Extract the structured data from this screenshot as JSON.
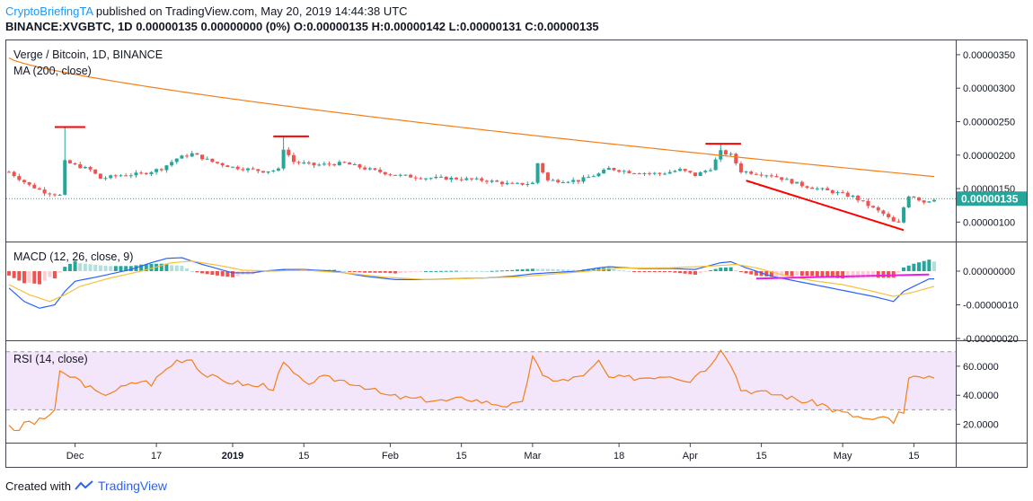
{
  "header": {
    "author": "CryptoBriefingTA",
    "published": "published on TradingView.com, May 20, 2019 14:44:38 UTC",
    "symbol": "BINANCE:XVGBTC, 1D",
    "change": "0.00000135 0.00000000 (0%)",
    "o_label": "O:",
    "o_value": "0.00000135",
    "h_label": "H:",
    "h_value": "0.00000142",
    "l_label": "L:",
    "l_value": "0.00000131",
    "c_label": "C:",
    "c_value": "0.00000135"
  },
  "footer": {
    "created": "Created with",
    "brand": "TradingView"
  },
  "colors": {
    "up": "#26a69a",
    "down": "#ef5350",
    "ma": "#f57f17",
    "macd": "#2962ff",
    "signal": "#f5c13b",
    "rsi": "#f57f17",
    "rsiband": "#f3e5fa",
    "annot": "#ff0000",
    "annot2": "#e91ee9"
  },
  "chart_data": {
    "type": "candlestick",
    "title": "Verge / Bitcoin, 1D, BINANCE",
    "indicator_label": "MA (200, close)",
    "last_price_label": "0.00000135",
    "price_axis": {
      "range": [
        7.5e-07,
        3.7e-06
      ],
      "ticks": [
        "0.00000350",
        "0.00000300",
        "0.00000250",
        "0.00000200",
        "0.00000150",
        "0.00000100"
      ],
      "tick_values": [
        3.5,
        3.0,
        2.5,
        2.0,
        1.5,
        1.0
      ]
    },
    "x_axis_labels": [
      {
        "label": "Dec",
        "day": 13
      },
      {
        "label": "17",
        "day": 29
      },
      {
        "label": "2019",
        "day": 44
      },
      {
        "label": "15",
        "day": 58
      },
      {
        "label": "Feb",
        "day": 75
      },
      {
        "label": "15",
        "day": 89
      },
      {
        "label": "Mar",
        "day": 103
      },
      {
        "label": "18",
        "day": 120
      },
      {
        "label": "Apr",
        "day": 134
      },
      {
        "label": "15",
        "day": 148
      },
      {
        "label": "May",
        "day": 164
      },
      {
        "label": "15",
        "day": 178
      }
    ],
    "price_keyframes": [
      [
        0,
        1.75
      ],
      [
        4,
        1.55
      ],
      [
        7,
        1.45
      ],
      [
        10,
        1.4
      ],
      [
        11,
        1.9
      ],
      [
        13,
        1.85
      ],
      [
        16,
        1.78
      ],
      [
        18,
        1.65
      ],
      [
        22,
        1.7
      ],
      [
        26,
        1.72
      ],
      [
        30,
        1.8
      ],
      [
        33,
        1.95
      ],
      [
        36,
        2.02
      ],
      [
        40,
        1.9
      ],
      [
        44,
        1.82
      ],
      [
        50,
        1.76
      ],
      [
        53,
        1.78
      ],
      [
        54,
        2.1
      ],
      [
        56,
        1.9
      ],
      [
        60,
        1.85
      ],
      [
        66,
        1.88
      ],
      [
        70,
        1.8
      ],
      [
        76,
        1.7
      ],
      [
        82,
        1.66
      ],
      [
        88,
        1.65
      ],
      [
        94,
        1.62
      ],
      [
        99,
        1.56
      ],
      [
        103,
        1.58
      ],
      [
        104,
        1.88
      ],
      [
        106,
        1.62
      ],
      [
        112,
        1.62
      ],
      [
        116,
        1.72
      ],
      [
        118,
        1.8
      ],
      [
        122,
        1.75
      ],
      [
        128,
        1.72
      ],
      [
        132,
        1.78
      ],
      [
        135,
        1.7
      ],
      [
        138,
        1.8
      ],
      [
        140,
        2.05
      ],
      [
        142,
        2.0
      ],
      [
        144,
        1.76
      ],
      [
        150,
        1.7
      ],
      [
        156,
        1.55
      ],
      [
        162,
        1.45
      ],
      [
        166,
        1.38
      ],
      [
        169,
        1.25
      ],
      [
        172,
        1.12
      ],
      [
        174,
        1.0
      ],
      [
        175,
        0.98
      ],
      [
        176,
        1.22
      ],
      [
        177,
        1.4
      ],
      [
        178,
        1.38
      ],
      [
        180,
        1.3
      ],
      [
        182,
        1.35
      ]
    ],
    "annotations": [
      {
        "type": "horizontal",
        "from_day": 9,
        "to_day": 15,
        "price": 2.42
      },
      {
        "type": "horizontal",
        "from_day": 52,
        "to_day": 59,
        "price": 2.28
      },
      {
        "type": "horizontal",
        "from_day": 137,
        "to_day": 144,
        "price": 2.17
      },
      {
        "type": "trend",
        "from_day": 145,
        "from_price": 1.62,
        "to_day": 176,
        "to_price": 0.88
      }
    ],
    "macd": {
      "label": "MACD (12, 26, close, 9)",
      "ticks": [
        "0.00000000",
        "-0.00000010",
        "-0.00000020"
      ],
      "tick_values": [
        0,
        -10,
        -20
      ],
      "range": [
        -20,
        10
      ],
      "macd_keyframes": [
        [
          0,
          -5
        ],
        [
          3,
          -9
        ],
        [
          6,
          -11
        ],
        [
          9,
          -10
        ],
        [
          11,
          -6
        ],
        [
          13,
          -3
        ],
        [
          18,
          -1.5
        ],
        [
          24,
          0.5
        ],
        [
          28,
          2.5
        ],
        [
          31,
          3.8
        ],
        [
          34,
          4
        ],
        [
          38,
          2
        ],
        [
          44,
          -0.5
        ],
        [
          48,
          -0.5
        ],
        [
          50,
          0
        ],
        [
          54,
          0.5
        ],
        [
          58,
          0.5
        ],
        [
          64,
          0
        ],
        [
          70,
          -1.5
        ],
        [
          76,
          -2.5
        ],
        [
          82,
          -2.5
        ],
        [
          88,
          -2.2
        ],
        [
          94,
          -2
        ],
        [
          99,
          -1.5
        ],
        [
          103,
          -0.8
        ],
        [
          106,
          -0.5
        ],
        [
          112,
          0
        ],
        [
          116,
          1
        ],
        [
          118,
          1.3
        ],
        [
          124,
          0.8
        ],
        [
          130,
          0.8
        ],
        [
          135,
          0.5
        ],
        [
          140,
          2.5
        ],
        [
          142,
          2.8
        ],
        [
          145,
          1
        ],
        [
          150,
          -1.5
        ],
        [
          155,
          -3
        ],
        [
          160,
          -4.5
        ],
        [
          165,
          -6
        ],
        [
          170,
          -7.5
        ],
        [
          174,
          -9
        ],
        [
          176,
          -6
        ],
        [
          178,
          -4.5
        ],
        [
          181,
          -2.3
        ]
      ],
      "signal_keyframes": [
        [
          0,
          -4
        ],
        [
          4,
          -7
        ],
        [
          8,
          -9
        ],
        [
          11,
          -7
        ],
        [
          14,
          -4.5
        ],
        [
          20,
          -2
        ],
        [
          26,
          0
        ],
        [
          32,
          2.5
        ],
        [
          36,
          3
        ],
        [
          42,
          1.5
        ],
        [
          46,
          0.3
        ],
        [
          52,
          0
        ],
        [
          58,
          0.3
        ],
        [
          66,
          -0.5
        ],
        [
          74,
          -1.8
        ],
        [
          82,
          -2.5
        ],
        [
          90,
          -2.2
        ],
        [
          100,
          -1.7
        ],
        [
          106,
          -1
        ],
        [
          114,
          0
        ],
        [
          120,
          0.9
        ],
        [
          130,
          1
        ],
        [
          138,
          1.5
        ],
        [
          143,
          2
        ],
        [
          147,
          1
        ],
        [
          152,
          -1
        ],
        [
          158,
          -2.8
        ],
        [
          164,
          -4
        ],
        [
          170,
          -6
        ],
        [
          174,
          -7.5
        ],
        [
          178,
          -6.2
        ],
        [
          182,
          -4.5
        ]
      ],
      "annotation": {
        "from_day": 147,
        "from_value": -2.2,
        "to_day": 181,
        "to_value": -1.0
      }
    },
    "rsi": {
      "label": "RSI (14, close)",
      "ticks": [
        "60.0000",
        "40.0000",
        "20.0000"
      ],
      "tick_values": [
        60,
        40,
        20
      ],
      "range": [
        8,
        76
      ],
      "band": [
        30,
        70
      ],
      "keyframes": [
        [
          0,
          20
        ],
        [
          2,
          14
        ],
        [
          3,
          22
        ],
        [
          5,
          21
        ],
        [
          7,
          24
        ],
        [
          9,
          30
        ],
        [
          10,
          55
        ],
        [
          13,
          52
        ],
        [
          16,
          45
        ],
        [
          18,
          40
        ],
        [
          22,
          45
        ],
        [
          26,
          50
        ],
        [
          28,
          48
        ],
        [
          30,
          55
        ],
        [
          33,
          64
        ],
        [
          36,
          65
        ],
        [
          38,
          55
        ],
        [
          42,
          50
        ],
        [
          46,
          48
        ],
        [
          48,
          46
        ],
        [
          50,
          47
        ],
        [
          52,
          45
        ],
        [
          54,
          62
        ],
        [
          56,
          55
        ],
        [
          58,
          48
        ],
        [
          62,
          52
        ],
        [
          66,
          50
        ],
        [
          70,
          46
        ],
        [
          74,
          40
        ],
        [
          78,
          38
        ],
        [
          82,
          37
        ],
        [
          86,
          36
        ],
        [
          90,
          38
        ],
        [
          94,
          35
        ],
        [
          98,
          33
        ],
        [
          101,
          34
        ],
        [
          103,
          68
        ],
        [
          105,
          52
        ],
        [
          110,
          50
        ],
        [
          114,
          56
        ],
        [
          116,
          63
        ],
        [
          118,
          52
        ],
        [
          124,
          52
        ],
        [
          130,
          54
        ],
        [
          134,
          50
        ],
        [
          136,
          57
        ],
        [
          138,
          60
        ],
        [
          140,
          73
        ],
        [
          142,
          62
        ],
        [
          144,
          44
        ],
        [
          148,
          42
        ],
        [
          152,
          40
        ],
        [
          156,
          36
        ],
        [
          160,
          34
        ],
        [
          162,
          30
        ],
        [
          166,
          26
        ],
        [
          168,
          24
        ],
        [
          170,
          22
        ],
        [
          172,
          26
        ],
        [
          174,
          20
        ],
        [
          175,
          28
        ],
        [
          176,
          26
        ],
        [
          177,
          50
        ],
        [
          178,
          55
        ],
        [
          180,
          50
        ],
        [
          182,
          53
        ]
      ]
    }
  }
}
